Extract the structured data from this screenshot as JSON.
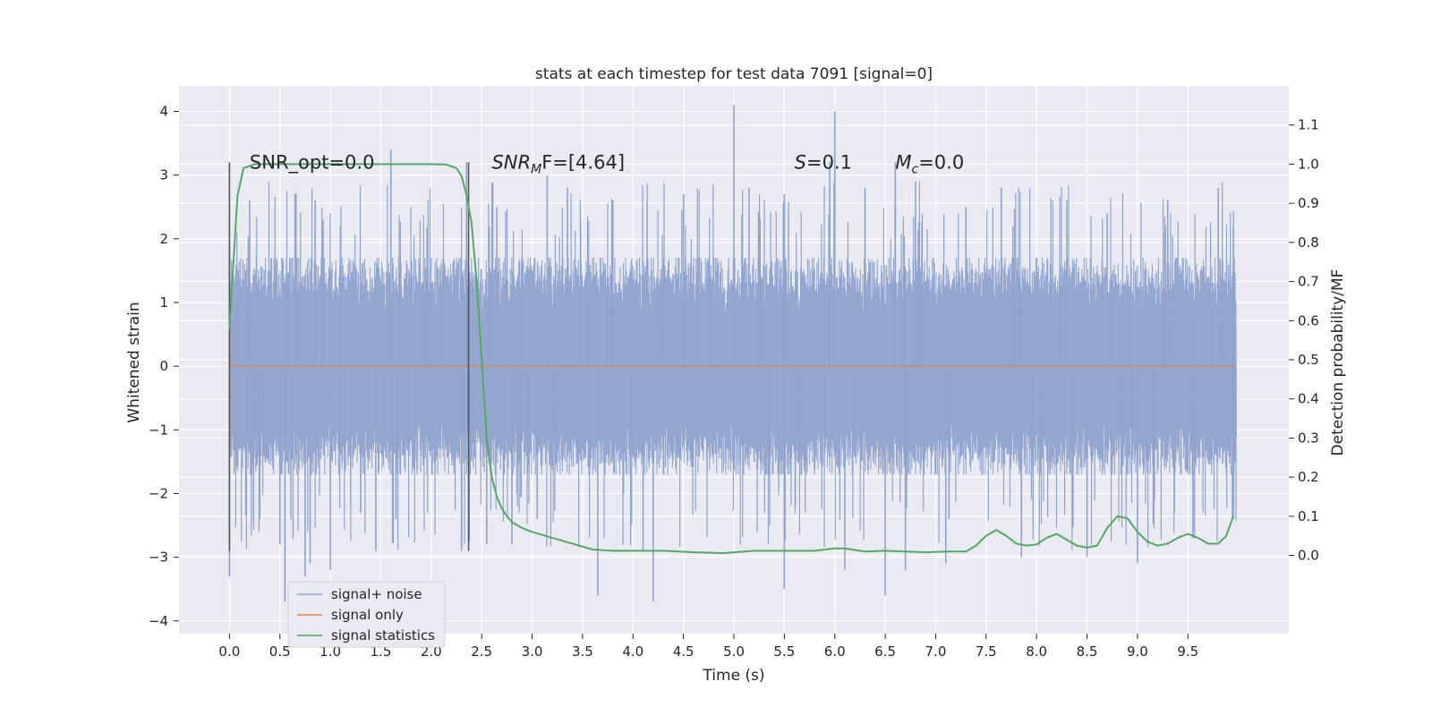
{
  "chart_data": {
    "type": "line",
    "title": "stats at each timestep for test data 7091 [signal=0]",
    "xlabel": "Time (s)",
    "ylabel": "Whitened strain",
    "y2label": "Detection probability/MF",
    "xlim": [
      -0.5,
      10.5
    ],
    "ylim": [
      -4.2,
      4.4
    ],
    "y2lim": [
      -0.2,
      1.2
    ],
    "x_ticks": [
      0.0,
      0.5,
      1.0,
      1.5,
      2.0,
      2.5,
      3.0,
      3.5,
      4.0,
      4.5,
      5.0,
      5.5,
      6.0,
      6.5,
      7.0,
      7.5,
      8.0,
      8.5,
      9.0,
      9.5
    ],
    "x_tick_labels": [
      "0.0",
      "0.5",
      "1.0",
      "1.5",
      "2.0",
      "2.5",
      "3.0",
      "3.5",
      "4.0",
      "4.5",
      "5.0",
      "5.5",
      "6.0",
      "6.5",
      "7.0",
      "7.5",
      "8.0",
      "8.5",
      "9.0",
      "9.5"
    ],
    "y_ticks": [
      4,
      3,
      2,
      1,
      0,
      -1,
      -2,
      -3,
      -4
    ],
    "y_tick_labels": [
      "4",
      "3",
      "2",
      "1",
      "0",
      "−1",
      "−2",
      "−3",
      "−4"
    ],
    "y2_ticks": [
      1.1,
      1.0,
      0.9,
      0.8,
      0.7,
      0.6,
      0.5,
      0.4,
      0.3,
      0.2,
      0.1,
      0.0
    ],
    "y2_tick_labels": [
      "1.1",
      "1.0",
      "0.9",
      "0.8",
      "0.7",
      "0.6",
      "0.5",
      "0.4",
      "0.3",
      "0.2",
      "0.1",
      "0.0"
    ],
    "grid": true,
    "legend_position": "lower-left",
    "series": [
      {
        "name": "signal+ noise",
        "color": "#8fa3cc",
        "x_range": [
          0.0,
          9.98
        ],
        "envelope": {
          "typical_peak": [
            -1.7,
            1.7
          ],
          "extremes": [
            -3.8,
            4.1
          ]
        },
        "spikes": [
          [
            0.0,
            2.0
          ],
          [
            0.0,
            -3.3
          ],
          [
            0.2,
            2.6
          ],
          [
            0.3,
            -2.4
          ],
          [
            0.5,
            -2.8
          ],
          [
            0.55,
            -3.7
          ],
          [
            0.65,
            2.7
          ],
          [
            0.75,
            -3.3
          ],
          [
            0.8,
            -3.1
          ],
          [
            0.85,
            2.6
          ],
          [
            1.0,
            -3.2
          ],
          [
            1.1,
            2.2
          ],
          [
            1.3,
            -2.3
          ],
          [
            1.45,
            -2.9
          ],
          [
            1.6,
            3.4
          ],
          [
            1.65,
            -2.4
          ],
          [
            2.3,
            -2.9
          ],
          [
            2.35,
            3.2
          ],
          [
            2.55,
            -2.8
          ],
          [
            2.65,
            2.5
          ],
          [
            2.8,
            -2.8
          ],
          [
            3.05,
            -2.4
          ],
          [
            3.15,
            3.0
          ],
          [
            3.35,
            2.8
          ],
          [
            3.65,
            -3.6
          ],
          [
            3.8,
            2.6
          ],
          [
            4.1,
            -2.9
          ],
          [
            4.2,
            -3.7
          ],
          [
            4.5,
            2.7
          ],
          [
            5.0,
            4.1
          ],
          [
            5.15,
            2.8
          ],
          [
            5.5,
            2.7
          ],
          [
            5.5,
            -3.5
          ],
          [
            5.95,
            3.2
          ],
          [
            6.0,
            4.0
          ],
          [
            6.1,
            -3.2
          ],
          [
            6.3,
            2.8
          ],
          [
            6.5,
            -3.6
          ],
          [
            6.6,
            3.2
          ],
          [
            6.7,
            -3.2
          ],
          [
            6.8,
            2.9
          ],
          [
            7.1,
            -3.1
          ],
          [
            7.3,
            2.5
          ],
          [
            7.65,
            2.8
          ],
          [
            7.85,
            -3.0
          ],
          [
            8.3,
            2.6
          ],
          [
            8.5,
            -3.0
          ],
          [
            8.7,
            2.4
          ],
          [
            9.0,
            -3.1
          ],
          [
            9.3,
            2.6
          ],
          [
            9.55,
            -2.7
          ],
          [
            9.8,
            2.8
          ],
          [
            9.95,
            2.2
          ],
          [
            9.95,
            -2.4
          ]
        ]
      },
      {
        "name": "signal only",
        "color": "#dd8452",
        "x": [
          0.0,
          9.98
        ],
        "y": [
          0.0,
          0.0
        ]
      },
      {
        "name": "signal statistics",
        "color": "#55a868",
        "axis": "right",
        "x": [
          0.0,
          0.08,
          0.14,
          0.25,
          0.4,
          0.8,
          1.2,
          1.6,
          2.0,
          2.15,
          2.25,
          2.3,
          2.35,
          2.4,
          2.45,
          2.5,
          2.55,
          2.6,
          2.65,
          2.7,
          2.75,
          2.8,
          2.9,
          3.0,
          3.2,
          3.4,
          3.6,
          3.8,
          4.0,
          4.3,
          4.6,
          4.9,
          5.2,
          5.5,
          5.8,
          6.0,
          6.1,
          6.3,
          6.5,
          6.7,
          6.9,
          7.1,
          7.3,
          7.4,
          7.5,
          7.6,
          7.7,
          7.8,
          7.9,
          8.0,
          8.1,
          8.2,
          8.3,
          8.4,
          8.5,
          8.6,
          8.7,
          8.8,
          8.9,
          9.0,
          9.1,
          9.2,
          9.3,
          9.4,
          9.5,
          9.6,
          9.7,
          9.8,
          9.88,
          9.95
        ],
        "y": [
          0.58,
          0.92,
          0.99,
          1.0,
          1.0,
          1.0,
          1.0,
          1.0,
          1.0,
          0.999,
          0.99,
          0.97,
          0.92,
          0.85,
          0.7,
          0.5,
          0.3,
          0.2,
          0.15,
          0.12,
          0.1,
          0.085,
          0.07,
          0.06,
          0.045,
          0.03,
          0.015,
          0.012,
          0.012,
          0.012,
          0.008,
          0.006,
          0.012,
          0.012,
          0.012,
          0.018,
          0.018,
          0.01,
          0.012,
          0.01,
          0.008,
          0.01,
          0.01,
          0.025,
          0.05,
          0.065,
          0.05,
          0.03,
          0.025,
          0.028,
          0.045,
          0.055,
          0.04,
          0.025,
          0.02,
          0.025,
          0.07,
          0.1,
          0.095,
          0.06,
          0.035,
          0.025,
          0.03,
          0.045,
          0.055,
          0.045,
          0.03,
          0.03,
          0.05,
          0.1
        ]
      }
    ],
    "vlines": [
      {
        "x": 0.0,
        "y_range": [
          -2.9,
          3.2
        ],
        "color": "#555555"
      },
      {
        "x": 2.37,
        "y_range": [
          -2.9,
          3.2
        ],
        "color": "#555555"
      }
    ],
    "annotations": [
      {
        "text": "SNR_opt=0.0",
        "x": 0.2,
        "y": 3.2
      },
      {
        "text": "SNR",
        "sub": "M",
        "tail": "F=[4.64]",
        "italic_prefix": true,
        "x": 2.6,
        "y": 3.2
      },
      {
        "text": "S",
        "tail": "=0.1",
        "italic_prefix": true,
        "x": 5.6,
        "y": 3.2
      },
      {
        "text": "M",
        "sub": "c",
        "tail": "=0.0",
        "italic_prefix": true,
        "x": 6.6,
        "y": 3.2
      }
    ]
  },
  "style": {
    "plot_background": "#eaeaf2",
    "grid_color": "#ffffff"
  }
}
